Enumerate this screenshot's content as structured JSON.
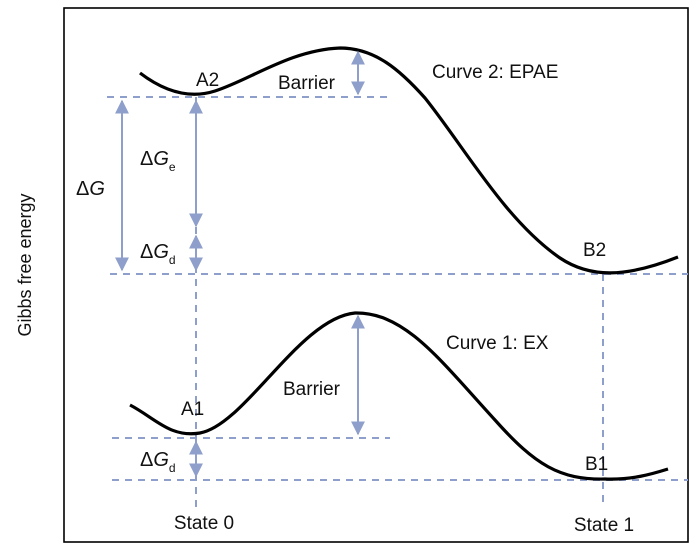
{
  "y_axis_label": "Gibbs  free energy",
  "curve2": {
    "title": "Curve 2: EPAE",
    "start_label": "A2",
    "end_label": "B2",
    "barrier_label": "Barrier"
  },
  "curve1": {
    "title": "Curve 1: EX",
    "start_label": "A1",
    "end_label": "B1",
    "barrier_label": "Barrier"
  },
  "delta_g": {
    "symbol": "Δ",
    "var": "G",
    "sub": ""
  },
  "delta_ge": {
    "symbol": "Δ",
    "var": "G",
    "sub": "e"
  },
  "delta_gd_top": {
    "symbol": "Δ",
    "var": "G",
    "sub": "d"
  },
  "delta_gd_bottom": {
    "symbol": "Δ",
    "var": "G",
    "sub": "d"
  },
  "state0_label": "State 0",
  "state1_label": "State 1",
  "colors": {
    "curve": "#000000",
    "guide": "#8f9fcb",
    "arrow": "#8f9fcb",
    "frame": "#000000"
  }
}
